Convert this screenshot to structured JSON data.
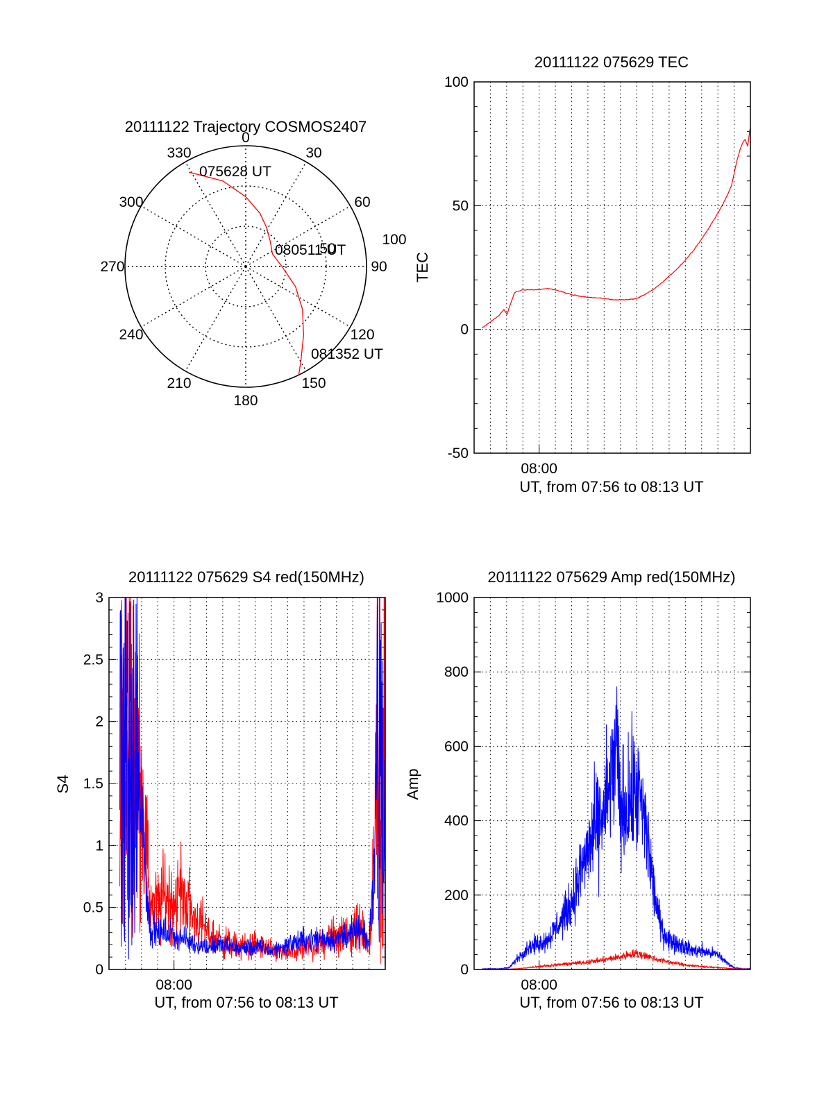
{
  "colors": {
    "red": "#ff0000",
    "blue": "#0000ff",
    "axis": "#000000",
    "grid": "#000000",
    "background": "#ffffff"
  },
  "chart_data": [
    {
      "id": "trajectory",
      "type": "polar",
      "title": "20111122 Trajectory COSMOS2407",
      "angle_labels": [
        "0",
        "30",
        "60",
        "90",
        "120",
        "150",
        "180",
        "210",
        "240",
        "270",
        "300",
        "330"
      ],
      "radius_labels": [
        "50",
        "100"
      ],
      "grid": true,
      "point_labels": [
        "075628 UT",
        "080511 UT",
        "081352 UT"
      ],
      "track": {
        "color": "red",
        "azimuth": [
          329,
          345,
          0,
          15,
          28,
          45,
          65,
          90,
          112,
          127,
          140,
          150,
          154
        ],
        "zenith": [
          82,
          66,
          52,
          41,
          33,
          26,
          22,
          27,
          40,
          53,
          67,
          82,
          90
        ]
      }
    },
    {
      "id": "tec",
      "type": "line",
      "title": "20111122 075629 TEC",
      "xlabel": "UT, from 07:56 to 08:13 UT",
      "ylabel": "TEC",
      "xlim": [
        "07:56:00",
        "08:13:00"
      ],
      "ylim": [
        -50,
        100
      ],
      "y_ticks": [
        "-50",
        "0",
        "50",
        "100"
      ],
      "x_ticks": [
        "08:00"
      ],
      "grid": true,
      "series": [
        {
          "color": "red",
          "x": [
            "07:56:29",
            "07:57:00",
            "07:57:30",
            "07:57:50",
            "07:58:02",
            "07:58:10",
            "07:58:30",
            "07:59:00",
            "07:59:30",
            "08:00:00",
            "08:00:30",
            "08:01:00",
            "08:02:00",
            "08:03:00",
            "08:04:00",
            "08:04:30",
            "08:05:00",
            "08:05:30",
            "08:06:00",
            "08:06:30",
            "08:07:00",
            "08:07:30",
            "08:08:00",
            "08:08:30",
            "08:09:00",
            "08:09:30",
            "08:10:00",
            "08:10:30",
            "08:11:00",
            "08:11:30",
            "08:11:50",
            "08:12:00",
            "08:12:10",
            "08:12:20",
            "08:12:30",
            "08:12:40",
            "08:12:50",
            "08:13:00"
          ],
          "y": [
            0.5,
            3,
            5.5,
            8,
            6,
            9,
            15,
            16,
            16,
            16,
            16.5,
            16,
            14,
            13,
            12.5,
            12,
            12,
            12,
            12.5,
            14,
            16,
            18.5,
            21.5,
            24.5,
            28,
            32,
            36.5,
            41.5,
            47,
            53,
            58,
            63,
            68,
            72,
            75,
            77,
            74,
            82
          ]
        }
      ]
    },
    {
      "id": "s4",
      "type": "line",
      "title": "20111122 075629 S4 red(150MHz)",
      "xlabel": "UT, from 07:56 to 08:13 UT",
      "ylabel": "S4",
      "xlim": [
        "07:56:00",
        "08:13:00"
      ],
      "ylim": [
        0,
        3
      ],
      "y_ticks": [
        "0",
        "0.5",
        "1",
        "1.5",
        "2",
        "2.5",
        "3"
      ],
      "x_ticks": [
        "08:00"
      ],
      "grid": true,
      "series": [
        {
          "color": "red",
          "x": [
            "07:56:40",
            "07:57:30",
            "07:58:00",
            "07:58:30",
            "07:59:00",
            "07:59:30",
            "08:00:00",
            "08:00:30",
            "08:01:00",
            "08:01:30",
            "08:02:00",
            "08:03:00",
            "08:04:00",
            "08:05:00",
            "08:06:00",
            "08:07:00",
            "08:08:00",
            "08:09:00",
            "08:10:00",
            "08:11:00",
            "08:11:30",
            "08:12:00",
            "08:12:20",
            "08:12:40",
            "08:13:00"
          ],
          "y": [
            2.5,
            2.2,
            1.5,
            0.6,
            0.5,
            0.6,
            0.55,
            0.65,
            0.45,
            0.4,
            0.3,
            0.22,
            0.18,
            0.2,
            0.15,
            0.13,
            0.16,
            0.2,
            0.28,
            0.3,
            0.35,
            0.15,
            0.9,
            2.8,
            3.0
          ]
        },
        {
          "color": "blue",
          "x": [
            "07:56:40",
            "07:57:30",
            "07:58:00",
            "07:58:30",
            "07:59:00",
            "07:59:30",
            "08:00:00",
            "08:00:30",
            "08:01:00",
            "08:01:30",
            "08:02:00",
            "08:03:00",
            "08:04:00",
            "08:05:00",
            "08:06:00",
            "08:07:00",
            "08:08:00",
            "08:09:00",
            "08:10:00",
            "08:11:00",
            "08:11:30",
            "08:12:00",
            "08:12:20",
            "08:12:40",
            "08:13:00"
          ],
          "y": [
            2.8,
            2.3,
            1.3,
            0.35,
            0.3,
            0.3,
            0.28,
            0.25,
            0.22,
            0.2,
            0.18,
            0.2,
            0.17,
            0.18,
            0.15,
            0.2,
            0.24,
            0.25,
            0.25,
            0.3,
            0.3,
            0.2,
            0.9,
            2.9,
            3.0
          ]
        }
      ]
    },
    {
      "id": "amp",
      "type": "line",
      "title": "20111122 075629 Amp red(150MHz)",
      "xlabel": "UT, from 07:56 to 08:13 UT",
      "ylabel": "Amp",
      "xlim": [
        "07:56:00",
        "08:13:00"
      ],
      "ylim": [
        0,
        1000
      ],
      "y_ticks": [
        "0",
        "200",
        "400",
        "600",
        "800",
        "1000"
      ],
      "x_ticks": [
        "08:00"
      ],
      "grid": true,
      "series": [
        {
          "color": "blue",
          "x": [
            "07:56:30",
            "07:57:30",
            "07:58:10",
            "07:58:40",
            "07:59:20",
            "08:00:00",
            "08:00:30",
            "08:01:00",
            "08:01:30",
            "08:02:00",
            "08:02:30",
            "08:03:00",
            "08:03:30",
            "08:04:00",
            "08:04:30",
            "08:04:45",
            "08:05:00",
            "08:05:30",
            "08:06:00",
            "08:06:30",
            "08:07:00",
            "08:07:30",
            "08:08:00",
            "08:08:30",
            "08:09:00",
            "08:09:30",
            "08:10:00",
            "08:10:30",
            "08:11:00",
            "08:11:30",
            "08:12:00",
            "08:12:30",
            "08:13:00"
          ],
          "y": [
            2,
            2,
            5,
            30,
            60,
            70,
            80,
            110,
            140,
            180,
            250,
            320,
            380,
            420,
            520,
            600,
            420,
            450,
            480,
            400,
            230,
            110,
            80,
            70,
            60,
            50,
            50,
            45,
            40,
            20,
            5,
            2,
            2
          ]
        },
        {
          "color": "red",
          "x": [
            "07:56:30",
            "07:58:00",
            "07:58:40",
            "07:59:20",
            "08:00:00",
            "08:01:00",
            "08:02:00",
            "08:03:00",
            "08:04:00",
            "08:05:00",
            "08:05:30",
            "08:06:00",
            "08:06:30",
            "08:07:00",
            "08:08:00",
            "08:09:00",
            "08:10:00",
            "08:11:00",
            "08:12:00",
            "08:13:00"
          ],
          "y": [
            1,
            1,
            2,
            5,
            8,
            12,
            16,
            20,
            26,
            34,
            40,
            42,
            38,
            30,
            20,
            12,
            8,
            5,
            2,
            1
          ]
        }
      ]
    }
  ]
}
